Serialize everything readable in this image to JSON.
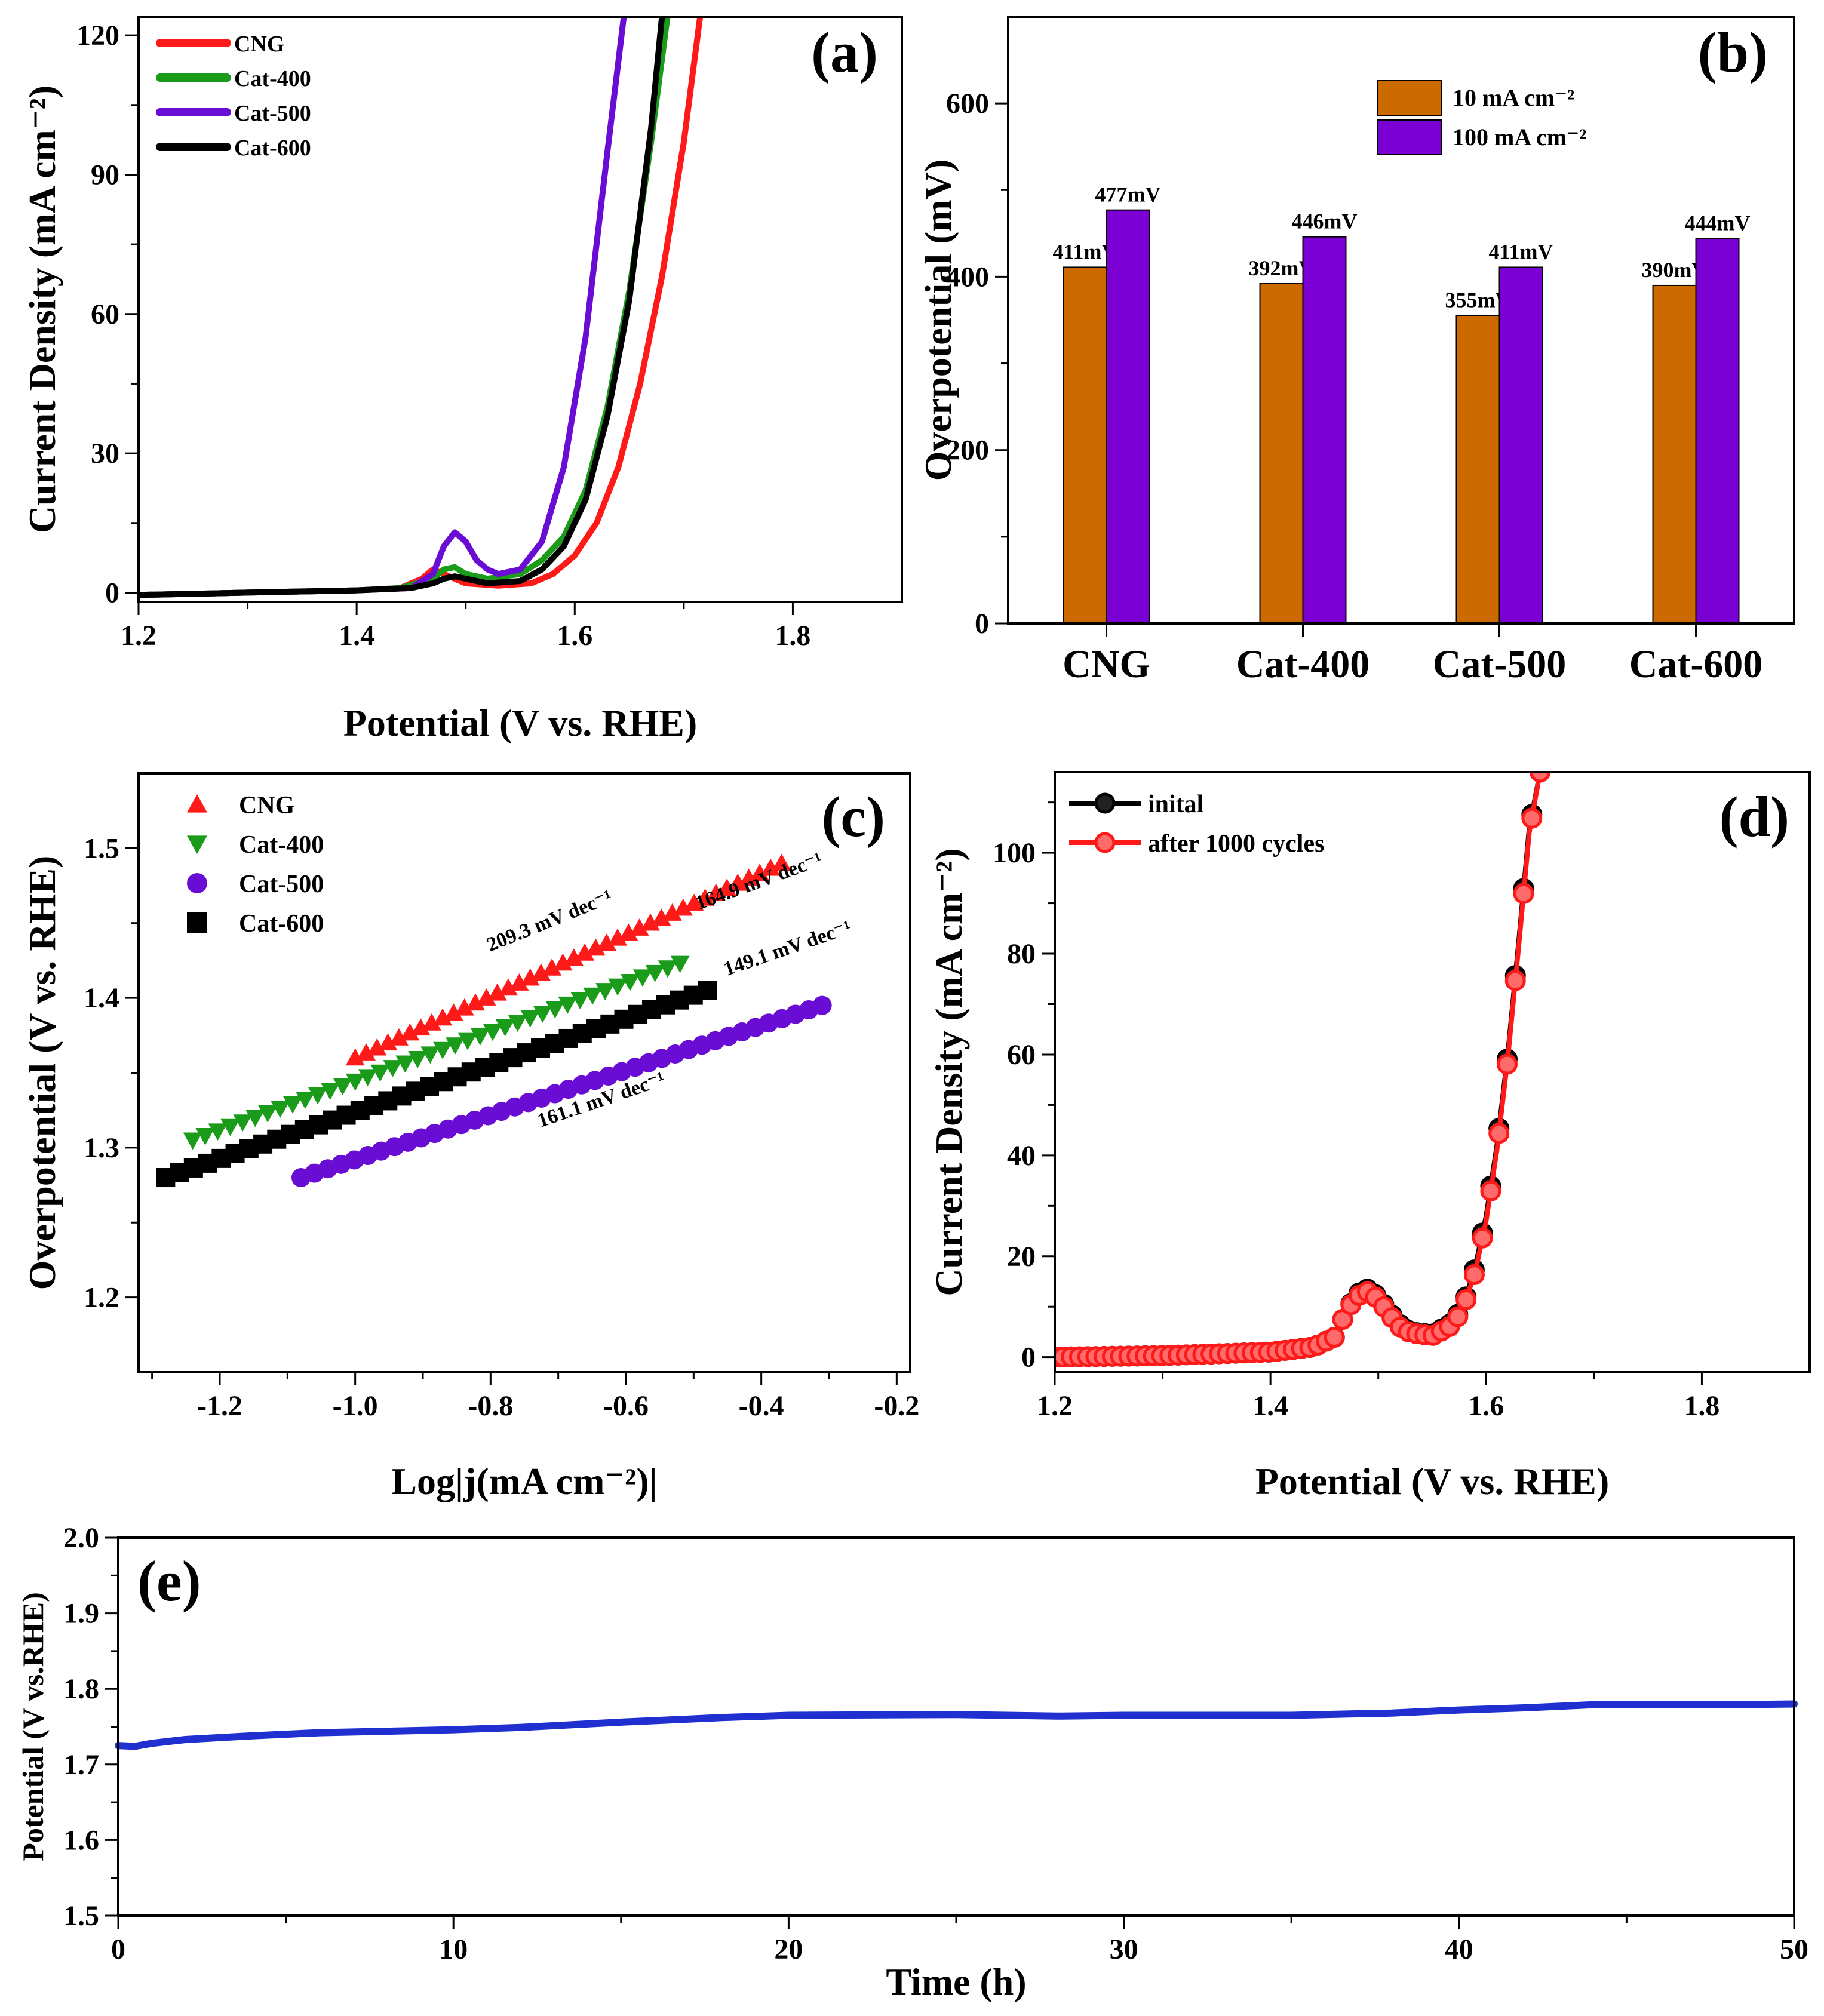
{
  "chart_data": [
    {
      "panel": "(a)",
      "type": "line",
      "xlabel": "Potential (V vs. RHE)",
      "ylabel": "Current Density (mA cm⁻²)",
      "xlim": [
        1.2,
        1.9
      ],
      "ylim": [
        -2,
        124
      ],
      "xticks": [
        1.2,
        1.4,
        1.6,
        1.8
      ],
      "yticks": [
        0,
        30,
        60,
        90,
        120
      ],
      "legend": "top-left",
      "series": [
        {
          "name": "CNG",
          "color": "#ff1a1a",
          "x": [
            1.2,
            1.3,
            1.4,
            1.44,
            1.46,
            1.47,
            1.48,
            1.5,
            1.53,
            1.56,
            1.58,
            1.6,
            1.62,
            1.64,
            1.66,
            1.68,
            1.7,
            1.715
          ],
          "y": [
            -0.5,
            0,
            0.5,
            1,
            3,
            5,
            4,
            2,
            1.5,
            2,
            4,
            8,
            15,
            27,
            45,
            68,
            97,
            124
          ]
        },
        {
          "name": "Cat-400",
          "color": "#1a9c1a",
          "x": [
            1.2,
            1.3,
            1.4,
            1.44,
            1.47,
            1.48,
            1.49,
            1.5,
            1.52,
            1.55,
            1.57,
            1.59,
            1.61,
            1.63,
            1.65,
            1.67,
            1.685
          ],
          "y": [
            -0.5,
            0,
            0.5,
            1,
            3,
            5,
            5.5,
            4,
            3,
            4,
            7,
            12,
            22,
            40,
            65,
            97,
            124
          ]
        },
        {
          "name": "Cat-500",
          "color": "#6a0dd4",
          "x": [
            1.2,
            1.3,
            1.4,
            1.45,
            1.47,
            1.48,
            1.49,
            1.5,
            1.51,
            1.52,
            1.53,
            1.55,
            1.57,
            1.59,
            1.61,
            1.63,
            1.645
          ],
          "y": [
            -0.5,
            0,
            0.5,
            1,
            4,
            10,
            13,
            11,
            7,
            5,
            4,
            5,
            11,
            27,
            55,
            95,
            124
          ]
        },
        {
          "name": "Cat-600",
          "color": "#000000",
          "x": [
            1.2,
            1.3,
            1.4,
            1.45,
            1.47,
            1.48,
            1.49,
            1.5,
            1.52,
            1.55,
            1.57,
            1.59,
            1.61,
            1.63,
            1.65,
            1.67,
            1.68
          ],
          "y": [
            -0.5,
            0,
            0.5,
            1,
            2,
            3,
            3.5,
            3,
            2,
            2.5,
            5,
            10,
            20,
            38,
            63,
            100,
            124
          ]
        }
      ],
      "panel_label": "(a)"
    },
    {
      "panel": "(b)",
      "type": "bar",
      "ylabel": "Overpotential (mV)",
      "ylim": [
        0,
        700
      ],
      "yticks": [
        0,
        200,
        400,
        600
      ],
      "categories": [
        "CNG",
        "Cat-400",
        "Cat-500",
        "Cat-600"
      ],
      "legend": "top-center",
      "series": [
        {
          "name": "10 mA cm⁻²",
          "color": "#cc6a00",
          "values": [
            411,
            392,
            355,
            390
          ],
          "labels": [
            "411mV",
            "392mV",
            "355mV",
            "390mV"
          ]
        },
        {
          "name": "100 mA cm⁻²",
          "color": "#7a00d4",
          "values": [
            477,
            446,
            411,
            444
          ],
          "labels": [
            "477mV",
            "446mV",
            "411mV",
            "444mV"
          ]
        }
      ],
      "panel_label": "(b)"
    },
    {
      "panel": "(c)",
      "type": "scatter",
      "xlabel": "Log|j(mA cm⁻²)|",
      "ylabel": "Overpotential (V vs. RHE)",
      "xlim": [
        -1.32,
        -0.18
      ],
      "ylim": [
        1.15,
        1.55
      ],
      "xticks": [
        -1.2,
        -1.0,
        -0.8,
        -0.6,
        -0.4,
        -0.2
      ],
      "yticks": [
        1.2,
        1.3,
        1.4,
        1.5
      ],
      "legend": "top-left",
      "series": [
        {
          "name": "CNG",
          "color": "#ff1a1a",
          "marker": "triangle-up",
          "x_range": [
            -1.0,
            -0.37
          ],
          "y_range": [
            1.36,
            1.49
          ],
          "count": 40,
          "slope_label": "209.3 mV dec⁻¹"
        },
        {
          "name": "Cat-400",
          "color": "#1a9c1a",
          "marker": "triangle-down",
          "x_range": [
            -1.24,
            -0.52
          ],
          "y_range": [
            1.305,
            1.423
          ],
          "count": 40,
          "slope_label": "164.9 mV dec⁻¹"
        },
        {
          "name": "Cat-500",
          "color": "#6a0dd4",
          "marker": "circle",
          "x_range": [
            -1.08,
            -0.31
          ],
          "y_range": [
            1.28,
            1.395
          ],
          "count": 40,
          "slope_label": "149.1 mV dec⁻¹"
        },
        {
          "name": "Cat-600",
          "color": "#000000",
          "marker": "square",
          "x_range": [
            -1.28,
            -0.48
          ],
          "y_range": [
            1.28,
            1.405
          ],
          "count": 40,
          "slope_label": "161.1 mV dec⁻¹"
        }
      ],
      "panel_label": "(c)"
    },
    {
      "panel": "(d)",
      "type": "line",
      "xlabel": "Potential (V vs. RHE)",
      "ylabel": "Current Density (mA cm⁻²)",
      "xlim": [
        1.2,
        1.9
      ],
      "ylim": [
        -3,
        116
      ],
      "xticks": [
        1.2,
        1.4,
        1.6,
        1.8
      ],
      "yticks": [
        0,
        20,
        40,
        60,
        80,
        100
      ],
      "legend": "top-left",
      "series": [
        {
          "name": "inital",
          "color": "#000000",
          "x": [
            1.2,
            1.3,
            1.4,
            1.44,
            1.46,
            1.47,
            1.48,
            1.49,
            1.5,
            1.51,
            1.52,
            1.53,
            1.55,
            1.57,
            1.58,
            1.59,
            1.6,
            1.61,
            1.62,
            1.63,
            1.64,
            1.65
          ],
          "y": [
            0,
            0.3,
            1,
            2,
            4,
            9,
            12.5,
            13.5,
            12,
            9,
            6.5,
            5,
            4.5,
            7,
            11,
            18,
            28,
            42,
            60,
            82,
            105,
            116
          ]
        },
        {
          "name": "after 1000 cycles",
          "color": "#ff1a1a",
          "x": [
            1.2,
            1.3,
            1.4,
            1.44,
            1.46,
            1.47,
            1.48,
            1.49,
            1.5,
            1.51,
            1.52,
            1.53,
            1.55,
            1.57,
            1.58,
            1.59,
            1.6,
            1.61,
            1.62,
            1.63,
            1.64,
            1.65
          ],
          "y": [
            0,
            0.3,
            1,
            2,
            4,
            9,
            12,
            13,
            11.5,
            8.5,
            6,
            4.8,
            4.2,
            6.5,
            10.5,
            17,
            27,
            41,
            59,
            81,
            104,
            116
          ]
        }
      ],
      "panel_label": "(d)"
    },
    {
      "panel": "(e)",
      "type": "line",
      "xlabel": "Time (h)",
      "ylabel": "Potential (V vs.RHE)",
      "xlim": [
        0,
        50
      ],
      "ylim": [
        1.5,
        2.0
      ],
      "xticks": [
        0,
        10,
        20,
        30,
        40,
        50
      ],
      "yticks": [
        1.5,
        1.6,
        1.7,
        1.8,
        1.9,
        2.0
      ],
      "series": [
        {
          "name": "Potential",
          "color": "#1f2fd0",
          "x": [
            0,
            0.5,
            1,
            2,
            4,
            6,
            8,
            10,
            12,
            15,
            18,
            20,
            25,
            28,
            30,
            35,
            38,
            40,
            42,
            44,
            46,
            48,
            50
          ],
          "y": [
            1.725,
            1.724,
            1.728,
            1.733,
            1.738,
            1.742,
            1.744,
            1.746,
            1.749,
            1.756,
            1.762,
            1.765,
            1.766,
            1.764,
            1.765,
            1.765,
            1.768,
            1.772,
            1.775,
            1.779,
            1.779,
            1.779,
            1.78
          ]
        }
      ],
      "panel_label": "(e)"
    }
  ]
}
